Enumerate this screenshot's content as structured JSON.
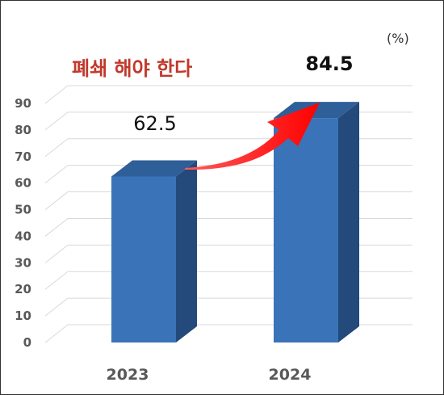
{
  "chart_data": {
    "type": "bar",
    "style": "3d-column",
    "categories": [
      "2023",
      "2024"
    ],
    "values": [
      62.5,
      84.5
    ],
    "data_labels": [
      "62.5",
      "84.5"
    ],
    "unit_label": "(%)",
    "annotation": "폐쇄 해야 한다",
    "ylim": [
      0,
      90
    ],
    "yticks": [
      0,
      10,
      20,
      30,
      40,
      50,
      60,
      70,
      80,
      90
    ],
    "grid": true,
    "legend": "none",
    "trend_arrow": {
      "from": "2023",
      "to": "2024"
    }
  },
  "colors": {
    "bar_front": "#3a73b8",
    "bar_side": "#234a7a",
    "bar_top": "#2f5f99",
    "arrow": "#ff0000",
    "annotation": "#c0392b",
    "grid": "#d9d9d9",
    "axis_text": "#595959"
  }
}
